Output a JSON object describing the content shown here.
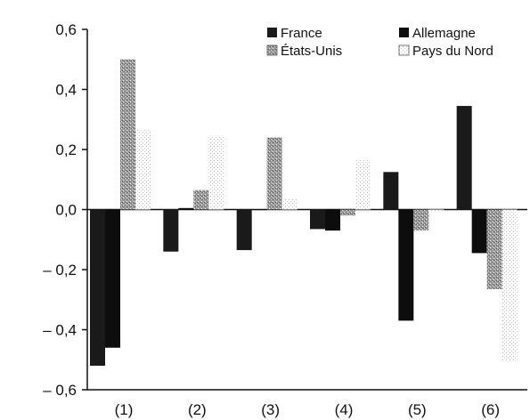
{
  "chart_data": {
    "type": "bar",
    "title": "",
    "xlabel": "",
    "ylabel": "",
    "categories": [
      "(1)",
      "(2)",
      "(3)",
      "(4)",
      "(5)",
      "(6)"
    ],
    "ylim": [
      -0.6,
      0.6
    ],
    "yticks": [
      0.6,
      0.4,
      0.2,
      0.0,
      -0.2,
      -0.4,
      -0.6
    ],
    "ytick_labels": [
      "0,6",
      "0,4",
      "0,2",
      "0,0",
      "– 0,2",
      "– 0,4",
      "– 0,6"
    ],
    "grid": false,
    "legend_position": "top-right",
    "series": [
      {
        "name": "France",
        "values": [
          -0.52,
          -0.14,
          -0.135,
          -0.065,
          0.125,
          0.345
        ],
        "color": "#1a1a1a",
        "pattern": "solid"
      },
      {
        "name": "Allemagne",
        "values": [
          -0.46,
          0.005,
          0.0,
          -0.07,
          -0.37,
          -0.145
        ],
        "color": "#0d0d0d",
        "pattern": "solid"
      },
      {
        "name": "États-Unis",
        "values": [
          0.5,
          0.065,
          0.24,
          -0.02,
          -0.07,
          -0.265
        ],
        "color": "#8a8a8a",
        "pattern": "speckled"
      },
      {
        "name": "Pays du Nord",
        "values": [
          0.265,
          0.245,
          0.035,
          0.165,
          -0.005,
          -0.505
        ],
        "color": "#c8c8c8",
        "pattern": "dotted"
      }
    ]
  }
}
